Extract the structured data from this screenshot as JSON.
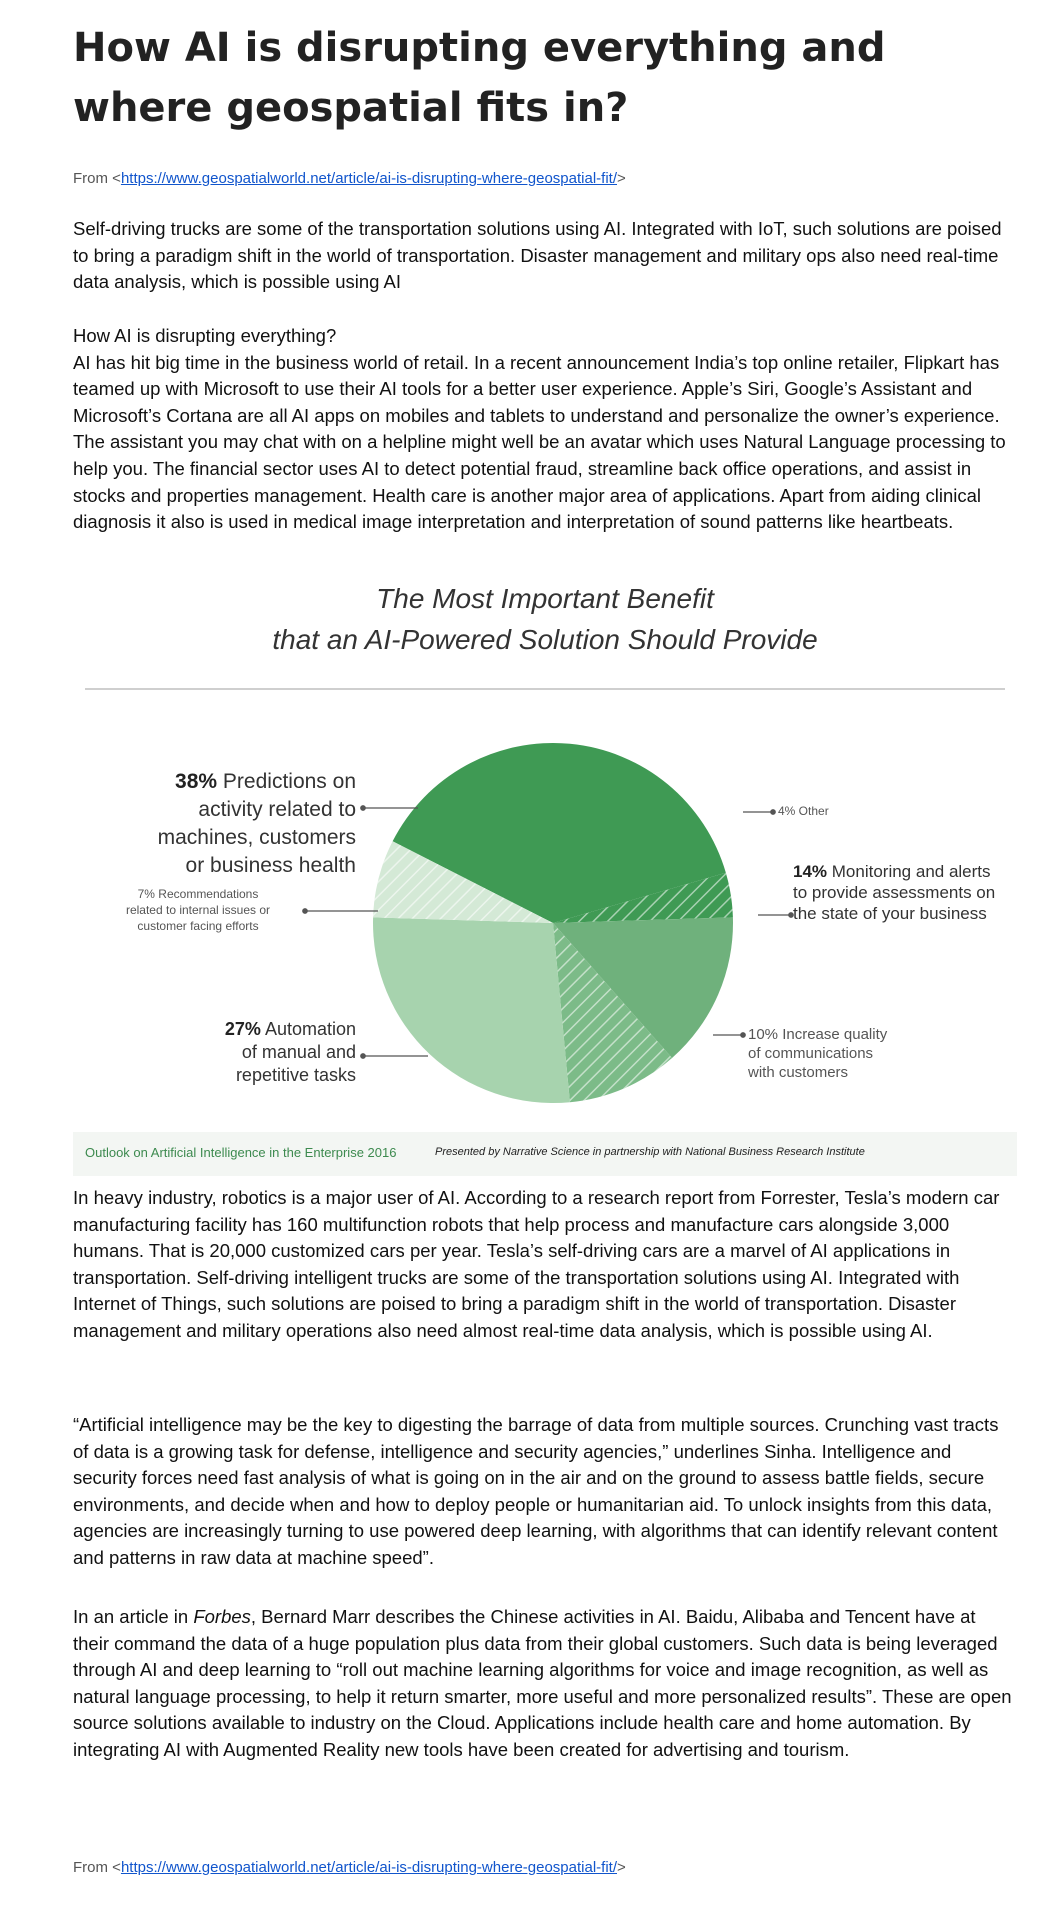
{
  "article": {
    "title": "How AI is disrupting everything and where geospatial fits in?",
    "from_prefix": "From <",
    "source_url": "https://www.geospatialworld.net/article/ai-is-disrupting-where-geospatial-fit/",
    "from_suffix": ">",
    "intro": "Self-driving trucks are some of the transportation solutions using AI. Integrated with IoT, such solutions are poised to bring a paradigm shift in the world of transportation. Disaster management and military ops also need real-time data analysis, which is possible using AI",
    "section_heading": "How AI is disrupting everything?",
    "section_body": "AI has hit big time in the business world of retail. In a recent announcement India’s top online retailer, Flipkart has teamed up with Microsoft to use their AI tools for a better user experience. Apple’s Siri, Google’s Assistant and Microsoft’s Cortana are all AI apps on mobiles and tablets to understand and personalize the owner’s experience. The assistant you may chat with on a helpline might well be an avatar which uses Natural Language processing to help you. The financial sector uses AI to detect potential fraud, streamline back office operations, and assist in stocks and properties management. Health care is another major area of applications. Apart from aiding clinical diagnosis it also is used in medical image interpretation and interpretation of sound patterns like heartbeats.",
    "para_industry": "In heavy industry, robotics is a major user of AI. According to a research report from Forrester, Tesla’s modern car manufacturing facility has 160 multifunction robots that help process and manufacture cars alongside 3,000 humans. That is 20,000 customized cars per year. Tesla’s self-driving cars are a marvel of AI applications in transportation. Self-driving intelligent trucks are some of the transportation solutions using AI. Integrated with Internet of Things, such solutions are poised to bring a paradigm shift in the world of transportation. Disaster management and military operations also need almost real-time data analysis, which is possible using AI.",
    "para_quote": "“Artificial intelligence may be the key to digesting the barrage of data from multiple sources. Crunching vast tracts of data is a growing task for defense, intelligence and security agencies,” underlines Sinha. Intelligence and security forces need fast analysis of what is going on in the air and on the ground to assess battle fields, secure environments, and decide when and how to deploy people or humanitarian aid. To unlock insights from this data, agencies are increasingly turning to use powered deep learning, with algorithms that can identify relevant content and patterns in raw data at machine speed”.",
    "forbes_pre": "In an article in ",
    "forbes_name": "Forbes",
    "forbes_post": ", Bernard Marr describes the Chinese activities in AI. Baidu, Alibaba and Tencent have at their command the data of a huge population plus data from their global customers. Such data is being leveraged through AI and deep learning to “roll out machine learning algorithms for voice and image recognition, as well as natural language processing, to help it return smarter, more useful and more personalized results”. These are open source solutions available to industry on the Cloud. Applications include health care and home automation. By integrating AI with Augmented Reality new tools have been created for advertising and tourism."
  },
  "figure": {
    "title_line1": "The Most Important Benefit",
    "title_line2": "that an AI-Powered Solution Should Provide",
    "footer_left": "Outlook on Artificial Intelligence in the Enterprise 2016",
    "footer_right": "Presented by Narrative Science in partnership with National Business Research Institute",
    "labels": {
      "predictions_pct": "38%",
      "predictions_l1": "Predictions on",
      "predictions_l2": "activity related to",
      "predictions_l3": "machines, customers",
      "predictions_l4": "or business health",
      "other": "4% Other",
      "monitoring_pct": "14%",
      "monitoring_l1": "Monitoring and alerts",
      "monitoring_l2": "to provide assessments on",
      "monitoring_l3": "the state of your business",
      "recs_l1": "7% Recommendations",
      "recs_l2": "related to internal issues or",
      "recs_l3": "customer facing efforts",
      "automation_pct": "27%",
      "automation_l1": "Automation",
      "automation_l2": "of manual and",
      "automation_l3": "repetitive tasks",
      "quality_l1": "10% Increase quality",
      "quality_l2": "of communications",
      "quality_l3": "with customers"
    }
  },
  "chart_data": {
    "type": "pie",
    "title": "The Most Important Benefit that an AI-Powered Solution Should Provide",
    "categories": [
      "Predictions on activity related to machines, customers or business health",
      "Other",
      "Monitoring and alerts to provide assessments on the state of your business",
      "Increase quality of communications with customers",
      "Automation of manual and repetitive tasks",
      "Recommendations related to internal issues or customer facing efforts"
    ],
    "values": [
      38,
      4,
      14,
      10,
      27,
      7
    ],
    "colors": [
      "#3f9a54",
      "#3f9a54",
      "#6fb17c",
      "#7cbb88",
      "#a7d3ae",
      "#d4e9d6"
    ],
    "hatched": [
      false,
      true,
      false,
      true,
      false,
      true
    ],
    "legend": "callout labels",
    "source": "Outlook on Artificial Intelligence in the Enterprise 2016"
  }
}
